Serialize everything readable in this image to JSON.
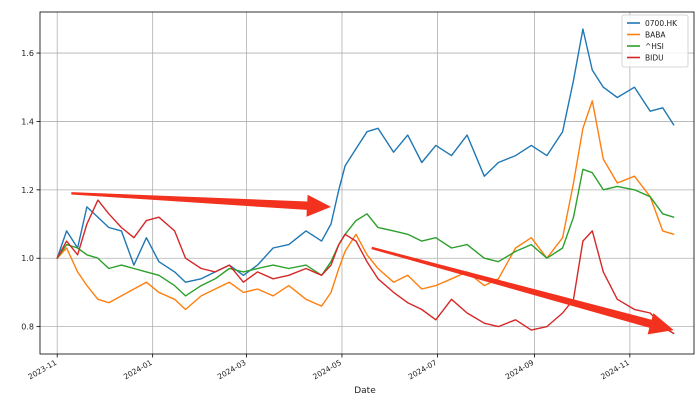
{
  "chart_data": {
    "type": "line",
    "xlabel": "Date",
    "ylabel": "",
    "x_axis_type": "date",
    "xlim": [
      "2023-10-21",
      "2024-12-12"
    ],
    "ylim": [
      0.72,
      1.72
    ],
    "grid": true,
    "legend_position": "top-right",
    "x_ticks": [
      "2023-11",
      "2024-01",
      "2024-03",
      "2024-05",
      "2024-07",
      "2024-09",
      "2024-11"
    ],
    "y_ticks": [
      "0.8",
      "1.0",
      "1.2",
      "1.4",
      "1.6"
    ],
    "series": [
      {
        "name": "0700.HK",
        "color": "#1f77b4",
        "points": [
          [
            "2023-11-01",
            1.0
          ],
          [
            "2023-11-07",
            1.08
          ],
          [
            "2023-11-14",
            1.03
          ],
          [
            "2023-11-20",
            1.15
          ],
          [
            "2023-11-27",
            1.12
          ],
          [
            "2023-12-04",
            1.09
          ],
          [
            "2023-12-12",
            1.08
          ],
          [
            "2023-12-20",
            0.98
          ],
          [
            "2023-12-28",
            1.06
          ],
          [
            "2024-01-05",
            0.99
          ],
          [
            "2024-01-15",
            0.96
          ],
          [
            "2024-01-22",
            0.93
          ],
          [
            "2024-02-01",
            0.94
          ],
          [
            "2024-02-10",
            0.96
          ],
          [
            "2024-02-19",
            0.98
          ],
          [
            "2024-02-28",
            0.95
          ],
          [
            "2024-03-08",
            0.98
          ],
          [
            "2024-03-18",
            1.03
          ],
          [
            "2024-03-28",
            1.04
          ],
          [
            "2024-04-08",
            1.08
          ],
          [
            "2024-04-18",
            1.05
          ],
          [
            "2024-04-24",
            1.1
          ],
          [
            "2024-04-29",
            1.2
          ],
          [
            "2024-05-03",
            1.27
          ],
          [
            "2024-05-10",
            1.32
          ],
          [
            "2024-05-17",
            1.37
          ],
          [
            "2024-05-24",
            1.38
          ],
          [
            "2024-06-03",
            1.31
          ],
          [
            "2024-06-12",
            1.36
          ],
          [
            "2024-06-21",
            1.28
          ],
          [
            "2024-06-30",
            1.33
          ],
          [
            "2024-07-10",
            1.3
          ],
          [
            "2024-07-20",
            1.36
          ],
          [
            "2024-07-31",
            1.24
          ],
          [
            "2024-08-09",
            1.28
          ],
          [
            "2024-08-20",
            1.3
          ],
          [
            "2024-08-30",
            1.33
          ],
          [
            "2024-09-09",
            1.3
          ],
          [
            "2024-09-19",
            1.37
          ],
          [
            "2024-09-26",
            1.52
          ],
          [
            "2024-10-02",
            1.67
          ],
          [
            "2024-10-08",
            1.55
          ],
          [
            "2024-10-15",
            1.5
          ],
          [
            "2024-10-24",
            1.47
          ],
          [
            "2024-11-04",
            1.5
          ],
          [
            "2024-11-14",
            1.43
          ],
          [
            "2024-11-22",
            1.44
          ],
          [
            "2024-11-29",
            1.39
          ]
        ]
      },
      {
        "name": "BABA",
        "color": "#ff7f0e",
        "points": [
          [
            "2023-11-01",
            1.0
          ],
          [
            "2023-11-07",
            1.03
          ],
          [
            "2023-11-14",
            0.96
          ],
          [
            "2023-11-20",
            0.92
          ],
          [
            "2023-11-27",
            0.88
          ],
          [
            "2023-12-04",
            0.87
          ],
          [
            "2023-12-12",
            0.89
          ],
          [
            "2023-12-20",
            0.91
          ],
          [
            "2023-12-28",
            0.93
          ],
          [
            "2024-01-05",
            0.9
          ],
          [
            "2024-01-15",
            0.88
          ],
          [
            "2024-01-22",
            0.85
          ],
          [
            "2024-02-01",
            0.89
          ],
          [
            "2024-02-10",
            0.91
          ],
          [
            "2024-02-19",
            0.93
          ],
          [
            "2024-02-28",
            0.9
          ],
          [
            "2024-03-08",
            0.91
          ],
          [
            "2024-03-18",
            0.89
          ],
          [
            "2024-03-28",
            0.92
          ],
          [
            "2024-04-08",
            0.88
          ],
          [
            "2024-04-18",
            0.86
          ],
          [
            "2024-04-24",
            0.9
          ],
          [
            "2024-04-29",
            0.97
          ],
          [
            "2024-05-03",
            1.02
          ],
          [
            "2024-05-10",
            1.07
          ],
          [
            "2024-05-17",
            1.01
          ],
          [
            "2024-05-24",
            0.97
          ],
          [
            "2024-06-03",
            0.93
          ],
          [
            "2024-06-12",
            0.95
          ],
          [
            "2024-06-21",
            0.91
          ],
          [
            "2024-06-30",
            0.92
          ],
          [
            "2024-07-10",
            0.94
          ],
          [
            "2024-07-20",
            0.96
          ],
          [
            "2024-07-31",
            0.92
          ],
          [
            "2024-08-09",
            0.94
          ],
          [
            "2024-08-20",
            1.03
          ],
          [
            "2024-08-30",
            1.06
          ],
          [
            "2024-09-09",
            1.0
          ],
          [
            "2024-09-19",
            1.06
          ],
          [
            "2024-09-26",
            1.22
          ],
          [
            "2024-10-02",
            1.38
          ],
          [
            "2024-10-08",
            1.46
          ],
          [
            "2024-10-15",
            1.29
          ],
          [
            "2024-10-24",
            1.22
          ],
          [
            "2024-11-04",
            1.24
          ],
          [
            "2024-11-14",
            1.18
          ],
          [
            "2024-11-22",
            1.08
          ],
          [
            "2024-11-29",
            1.07
          ]
        ]
      },
      {
        "name": "^HSI",
        "color": "#2ca02c",
        "points": [
          [
            "2023-11-01",
            1.0
          ],
          [
            "2023-11-07",
            1.04
          ],
          [
            "2023-11-14",
            1.03
          ],
          [
            "2023-11-20",
            1.01
          ],
          [
            "2023-11-27",
            1.0
          ],
          [
            "2023-12-04",
            0.97
          ],
          [
            "2023-12-12",
            0.98
          ],
          [
            "2023-12-20",
            0.97
          ],
          [
            "2023-12-28",
            0.96
          ],
          [
            "2024-01-05",
            0.95
          ],
          [
            "2024-01-15",
            0.92
          ],
          [
            "2024-01-22",
            0.89
          ],
          [
            "2024-02-01",
            0.92
          ],
          [
            "2024-02-10",
            0.94
          ],
          [
            "2024-02-19",
            0.97
          ],
          [
            "2024-02-28",
            0.96
          ],
          [
            "2024-03-08",
            0.97
          ],
          [
            "2024-03-18",
            0.98
          ],
          [
            "2024-03-28",
            0.97
          ],
          [
            "2024-04-08",
            0.98
          ],
          [
            "2024-04-18",
            0.95
          ],
          [
            "2024-04-24",
            0.99
          ],
          [
            "2024-04-29",
            1.04
          ],
          [
            "2024-05-03",
            1.07
          ],
          [
            "2024-05-10",
            1.11
          ],
          [
            "2024-05-17",
            1.13
          ],
          [
            "2024-05-24",
            1.09
          ],
          [
            "2024-06-03",
            1.08
          ],
          [
            "2024-06-12",
            1.07
          ],
          [
            "2024-06-21",
            1.05
          ],
          [
            "2024-06-30",
            1.06
          ],
          [
            "2024-07-10",
            1.03
          ],
          [
            "2024-07-20",
            1.04
          ],
          [
            "2024-07-31",
            1.0
          ],
          [
            "2024-08-09",
            0.99
          ],
          [
            "2024-08-20",
            1.02
          ],
          [
            "2024-08-30",
            1.04
          ],
          [
            "2024-09-09",
            1.0
          ],
          [
            "2024-09-19",
            1.03
          ],
          [
            "2024-09-26",
            1.12
          ],
          [
            "2024-10-02",
            1.26
          ],
          [
            "2024-10-08",
            1.25
          ],
          [
            "2024-10-15",
            1.2
          ],
          [
            "2024-10-24",
            1.21
          ],
          [
            "2024-11-04",
            1.2
          ],
          [
            "2024-11-14",
            1.18
          ],
          [
            "2024-11-22",
            1.13
          ],
          [
            "2024-11-29",
            1.12
          ]
        ]
      },
      {
        "name": "BIDU",
        "color": "#d62728",
        "points": [
          [
            "2023-11-01",
            1.0
          ],
          [
            "2023-11-07",
            1.05
          ],
          [
            "2023-11-14",
            1.01
          ],
          [
            "2023-11-20",
            1.1
          ],
          [
            "2023-11-27",
            1.17
          ],
          [
            "2023-12-04",
            1.13
          ],
          [
            "2023-12-12",
            1.09
          ],
          [
            "2023-12-20",
            1.06
          ],
          [
            "2023-12-28",
            1.11
          ],
          [
            "2024-01-05",
            1.12
          ],
          [
            "2024-01-15",
            1.08
          ],
          [
            "2024-01-22",
            1.0
          ],
          [
            "2024-02-01",
            0.97
          ],
          [
            "2024-02-10",
            0.96
          ],
          [
            "2024-02-19",
            0.98
          ],
          [
            "2024-02-28",
            0.93
          ],
          [
            "2024-03-08",
            0.96
          ],
          [
            "2024-03-18",
            0.94
          ],
          [
            "2024-03-28",
            0.95
          ],
          [
            "2024-04-08",
            0.97
          ],
          [
            "2024-04-18",
            0.95
          ],
          [
            "2024-04-24",
            0.98
          ],
          [
            "2024-04-29",
            1.04
          ],
          [
            "2024-05-03",
            1.07
          ],
          [
            "2024-05-10",
            1.05
          ],
          [
            "2024-05-17",
            0.99
          ],
          [
            "2024-05-24",
            0.94
          ],
          [
            "2024-06-03",
            0.9
          ],
          [
            "2024-06-12",
            0.87
          ],
          [
            "2024-06-21",
            0.85
          ],
          [
            "2024-06-30",
            0.82
          ],
          [
            "2024-07-10",
            0.88
          ],
          [
            "2024-07-20",
            0.84
          ],
          [
            "2024-07-31",
            0.81
          ],
          [
            "2024-08-09",
            0.8
          ],
          [
            "2024-08-20",
            0.82
          ],
          [
            "2024-08-30",
            0.79
          ],
          [
            "2024-09-09",
            0.8
          ],
          [
            "2024-09-19",
            0.84
          ],
          [
            "2024-09-26",
            0.88
          ],
          [
            "2024-10-02",
            1.05
          ],
          [
            "2024-10-08",
            1.08
          ],
          [
            "2024-10-15",
            0.96
          ],
          [
            "2024-10-24",
            0.88
          ],
          [
            "2024-11-04",
            0.85
          ],
          [
            "2024-11-14",
            0.84
          ],
          [
            "2024-11-22",
            0.8
          ],
          [
            "2024-11-29",
            0.78
          ]
        ]
      }
    ],
    "annotations": [
      {
        "type": "arrow",
        "color": "#f2321e",
        "from": [
          "2023-11-10",
          1.19
        ],
        "to": [
          "2024-04-24",
          1.15
        ]
      },
      {
        "type": "arrow",
        "color": "#f2321e",
        "from": [
          "2024-05-20",
          1.03
        ],
        "to": [
          "2024-11-29",
          0.79
        ]
      }
    ]
  }
}
